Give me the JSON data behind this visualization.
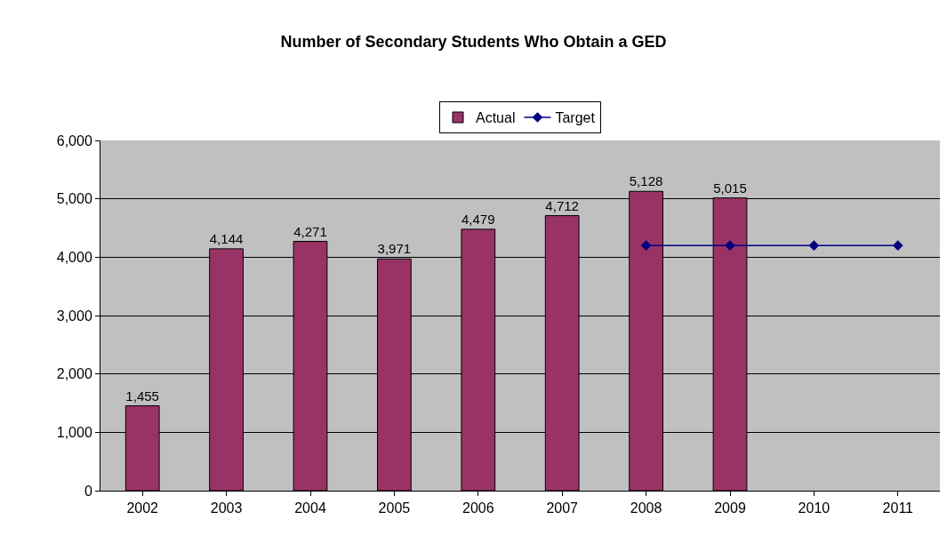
{
  "chart_data": {
    "type": "bar",
    "title": "Number of Secondary Students Who Obtain a GED",
    "categories": [
      "2002",
      "2003",
      "2004",
      "2005",
      "2006",
      "2007",
      "2008",
      "2009",
      "2010",
      "2011"
    ],
    "series": [
      {
        "name": "Actual",
        "color": "#993366",
        "values": [
          1455,
          4144,
          4271,
          3971,
          4479,
          4712,
          5128,
          5015,
          null,
          null
        ],
        "value_labels": [
          "1,455",
          "4,144",
          "4,271",
          "3,971",
          "4,479",
          "4,712",
          "5,128",
          "5,015",
          null,
          null
        ]
      },
      {
        "name": "Target",
        "type": "line",
        "color": "#000080",
        "marker": "diamond",
        "values": [
          null,
          null,
          null,
          null,
          null,
          null,
          4200,
          4200,
          4200,
          4200
        ]
      }
    ],
    "ylim": [
      0,
      6000
    ],
    "yticks": [
      0,
      {
        "value": 1000,
        "label": "1,000"
      },
      {
        "value": 2000,
        "label": "2,000"
      },
      {
        "value": 3000,
        "label": "3,000"
      },
      {
        "value": 4000,
        "label": "4,000"
      },
      {
        "value": 5000,
        "label": "5,000"
      },
      {
        "value": 6000,
        "label": "6,000"
      }
    ],
    "grid": "y",
    "legend": "top"
  }
}
